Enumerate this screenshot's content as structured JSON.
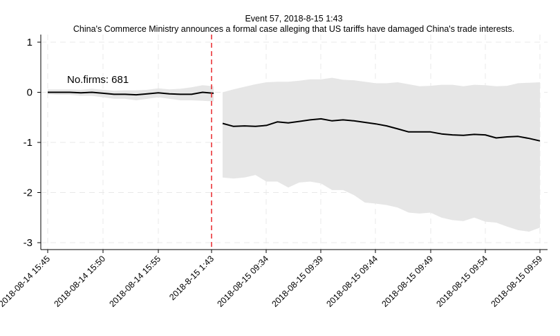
{
  "chart_data": {
    "type": "line",
    "title": "Event 57, 2018-8-15 1:43",
    "subtitle": "China's Commerce Ministry announces a formal case alleging that US tariffs have damaged China's trade interests.",
    "xlabel": "",
    "ylabel": "",
    "ylim": [
      -3.15,
      1.15
    ],
    "y_ticks": [
      1,
      0,
      -1,
      -2,
      -3
    ],
    "grid": true,
    "x_tick_labels": [
      "2018-08-14 15:45",
      "2018-08-14 15:50",
      "2018-08-14 15:55",
      "2018-8-15 1:43",
      "2018-08-15 09:34",
      "2018-08-15 09:39",
      "2018-08-15 09:44",
      "2018-08-15 09:49",
      "2018-08-15 09:54",
      "2018-08-15 09:59"
    ],
    "event_label": "2018-8-15 1:43",
    "annotation": "No.firms: 681",
    "series": [
      {
        "segment": "pre-event",
        "x_start": "2018-08-14 15:45",
        "interval_minutes": 1,
        "mean": [
          0.0,
          0.0,
          0.0,
          -0.01,
          0.0,
          -0.02,
          -0.04,
          -0.04,
          -0.05,
          -0.03,
          -0.01,
          -0.03,
          -0.04,
          -0.04,
          0.0,
          -0.02
        ],
        "upper": [
          0.06,
          0.06,
          0.06,
          0.05,
          0.07,
          0.05,
          0.03,
          0.04,
          0.04,
          0.05,
          0.08,
          0.06,
          0.07,
          0.1,
          0.14,
          0.12
        ],
        "lower": [
          -0.04,
          -0.05,
          -0.05,
          -0.07,
          -0.07,
          -0.1,
          -0.13,
          -0.13,
          -0.16,
          -0.13,
          -0.1,
          -0.13,
          -0.16,
          -0.16,
          -0.17,
          -0.18
        ]
      },
      {
        "segment": "post-event",
        "x_start": "2018-08-15 09:31",
        "interval_minutes": 1,
        "mean": [
          -0.62,
          -0.68,
          -0.67,
          -0.68,
          -0.66,
          -0.59,
          -0.61,
          -0.58,
          -0.55,
          -0.53,
          -0.57,
          -0.55,
          -0.57,
          -0.6,
          -0.63,
          -0.67,
          -0.73,
          -0.79,
          -0.79,
          -0.79,
          -0.83,
          -0.85,
          -0.86,
          -0.84,
          -0.85,
          -0.91,
          -0.89,
          -0.88,
          -0.92,
          -0.97
        ],
        "upper": [
          0.0,
          0.06,
          0.11,
          0.16,
          0.2,
          0.21,
          0.21,
          0.23,
          0.26,
          0.26,
          0.29,
          0.25,
          0.24,
          0.21,
          0.18,
          0.18,
          0.2,
          0.16,
          0.12,
          0.13,
          0.15,
          0.15,
          0.12,
          0.15,
          0.14,
          0.12,
          0.13,
          0.18,
          0.19,
          0.2
        ],
        "lower": [
          -1.7,
          -1.72,
          -1.7,
          -1.65,
          -1.78,
          -1.78,
          -1.9,
          -1.8,
          -1.78,
          -1.82,
          -1.95,
          -1.95,
          -2.05,
          -2.2,
          -2.22,
          -2.25,
          -2.3,
          -2.4,
          -2.42,
          -2.4,
          -2.5,
          -2.55,
          -2.57,
          -2.5,
          -2.58,
          -2.6,
          -2.68,
          -2.75,
          -2.78,
          -2.7
        ]
      }
    ]
  },
  "colors": {
    "line": "#000000",
    "band": "#e6e6e6",
    "event_line": "#e8262a",
    "grid": "#e8e8e8"
  }
}
